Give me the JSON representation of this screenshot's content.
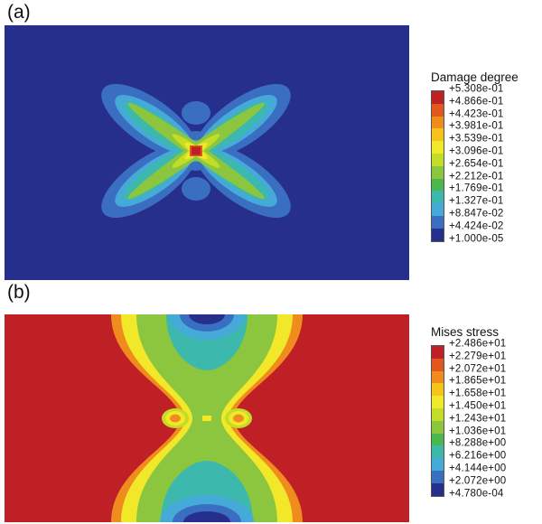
{
  "palette": [
    "#bf2026",
    "#e2571e",
    "#f08c1d",
    "#f6c21c",
    "#f2e82a",
    "#c3dc28",
    "#8cc63e",
    "#4cb74c",
    "#3cb8ad",
    "#46aad9",
    "#3a6ec0",
    "#272f8d"
  ],
  "panels": [
    {
      "label": "(a)",
      "legend": {
        "title": "Damage degree",
        "values": [
          "+5.308e-01",
          "+4.866e-01",
          "+4.423e-01",
          "+3.981e-01",
          "+3.539e-01",
          "+3.096e-01",
          "+2.654e-01",
          "+2.212e-01",
          "+1.769e-01",
          "+1.327e-01",
          "+8.847e-02",
          "+4.424e-02",
          "+1.000e-05"
        ]
      }
    },
    {
      "label": "(b)",
      "legend": {
        "title": "Mises stress",
        "values": [
          "+2.486e+01",
          "+2.279e+01",
          "+2.072e+01",
          "+1.865e+01",
          "+1.658e+01",
          "+1.450e+01",
          "+1.243e+01",
          "+1.036e+01",
          "+8.288e+00",
          "+6.216e+00",
          "+4.144e+00",
          "+2.072e+00",
          "+4.780e-04"
        ]
      }
    }
  ],
  "chart_data": [
    {
      "type": "heatmap",
      "subtype": "fea-contour-plot",
      "panel": "(a)",
      "title": "Damage degree",
      "legend_boundaries": [
        0.5308,
        0.4866,
        0.4423,
        0.3981,
        0.3539,
        0.3096,
        0.2654,
        0.2212,
        0.1769,
        0.1327,
        0.08847,
        0.04424,
        1e-05
      ],
      "range": [
        1e-05,
        0.5308
      ],
      "legend_position": "right",
      "colors_max_to_min": [
        "#bf2026",
        "#e2571e",
        "#f08c1d",
        "#f6c21c",
        "#f2e82a",
        "#c3dc28",
        "#8cc63e",
        "#4cb74c",
        "#3cb8ad",
        "#46aad9",
        "#3a6ec0",
        "#272f8d"
      ],
      "pattern": "Rectangular domain in dark blue (minimum damage) with an X-shaped butterfly damage band at center: blue outer lobes, cyan inner lobes, green X arms, yellow-green near center and a small red maximum-damage square at the center"
    },
    {
      "type": "heatmap",
      "subtype": "fea-contour-plot",
      "panel": "(b)",
      "title": "Mises stress",
      "legend_boundaries": [
        24.86,
        22.79,
        20.72,
        18.65,
        16.58,
        14.5,
        12.43,
        10.36,
        8.288,
        6.216,
        4.144,
        2.072,
        0.000478
      ],
      "range": [
        0.000478,
        24.86
      ],
      "legend_position": "right",
      "colors_max_to_min": [
        "#bf2026",
        "#e2571e",
        "#f08c1d",
        "#f6c21c",
        "#f2e82a",
        "#c3dc28",
        "#8cc63e",
        "#4cb74c",
        "#3cb8ad",
        "#46aad9",
        "#3a6ec0",
        "#272f8d"
      ],
      "pattern": "High Mises stress (red) fields on left and right forming a bowtie pinched at the center; vertical low-stress band through the middle with teal/cyan and dark-blue minima at top and bottom edges; orange-yellow-green contour rims and two yellow stress concentration spots flanking the small green zone at the center"
    }
  ]
}
